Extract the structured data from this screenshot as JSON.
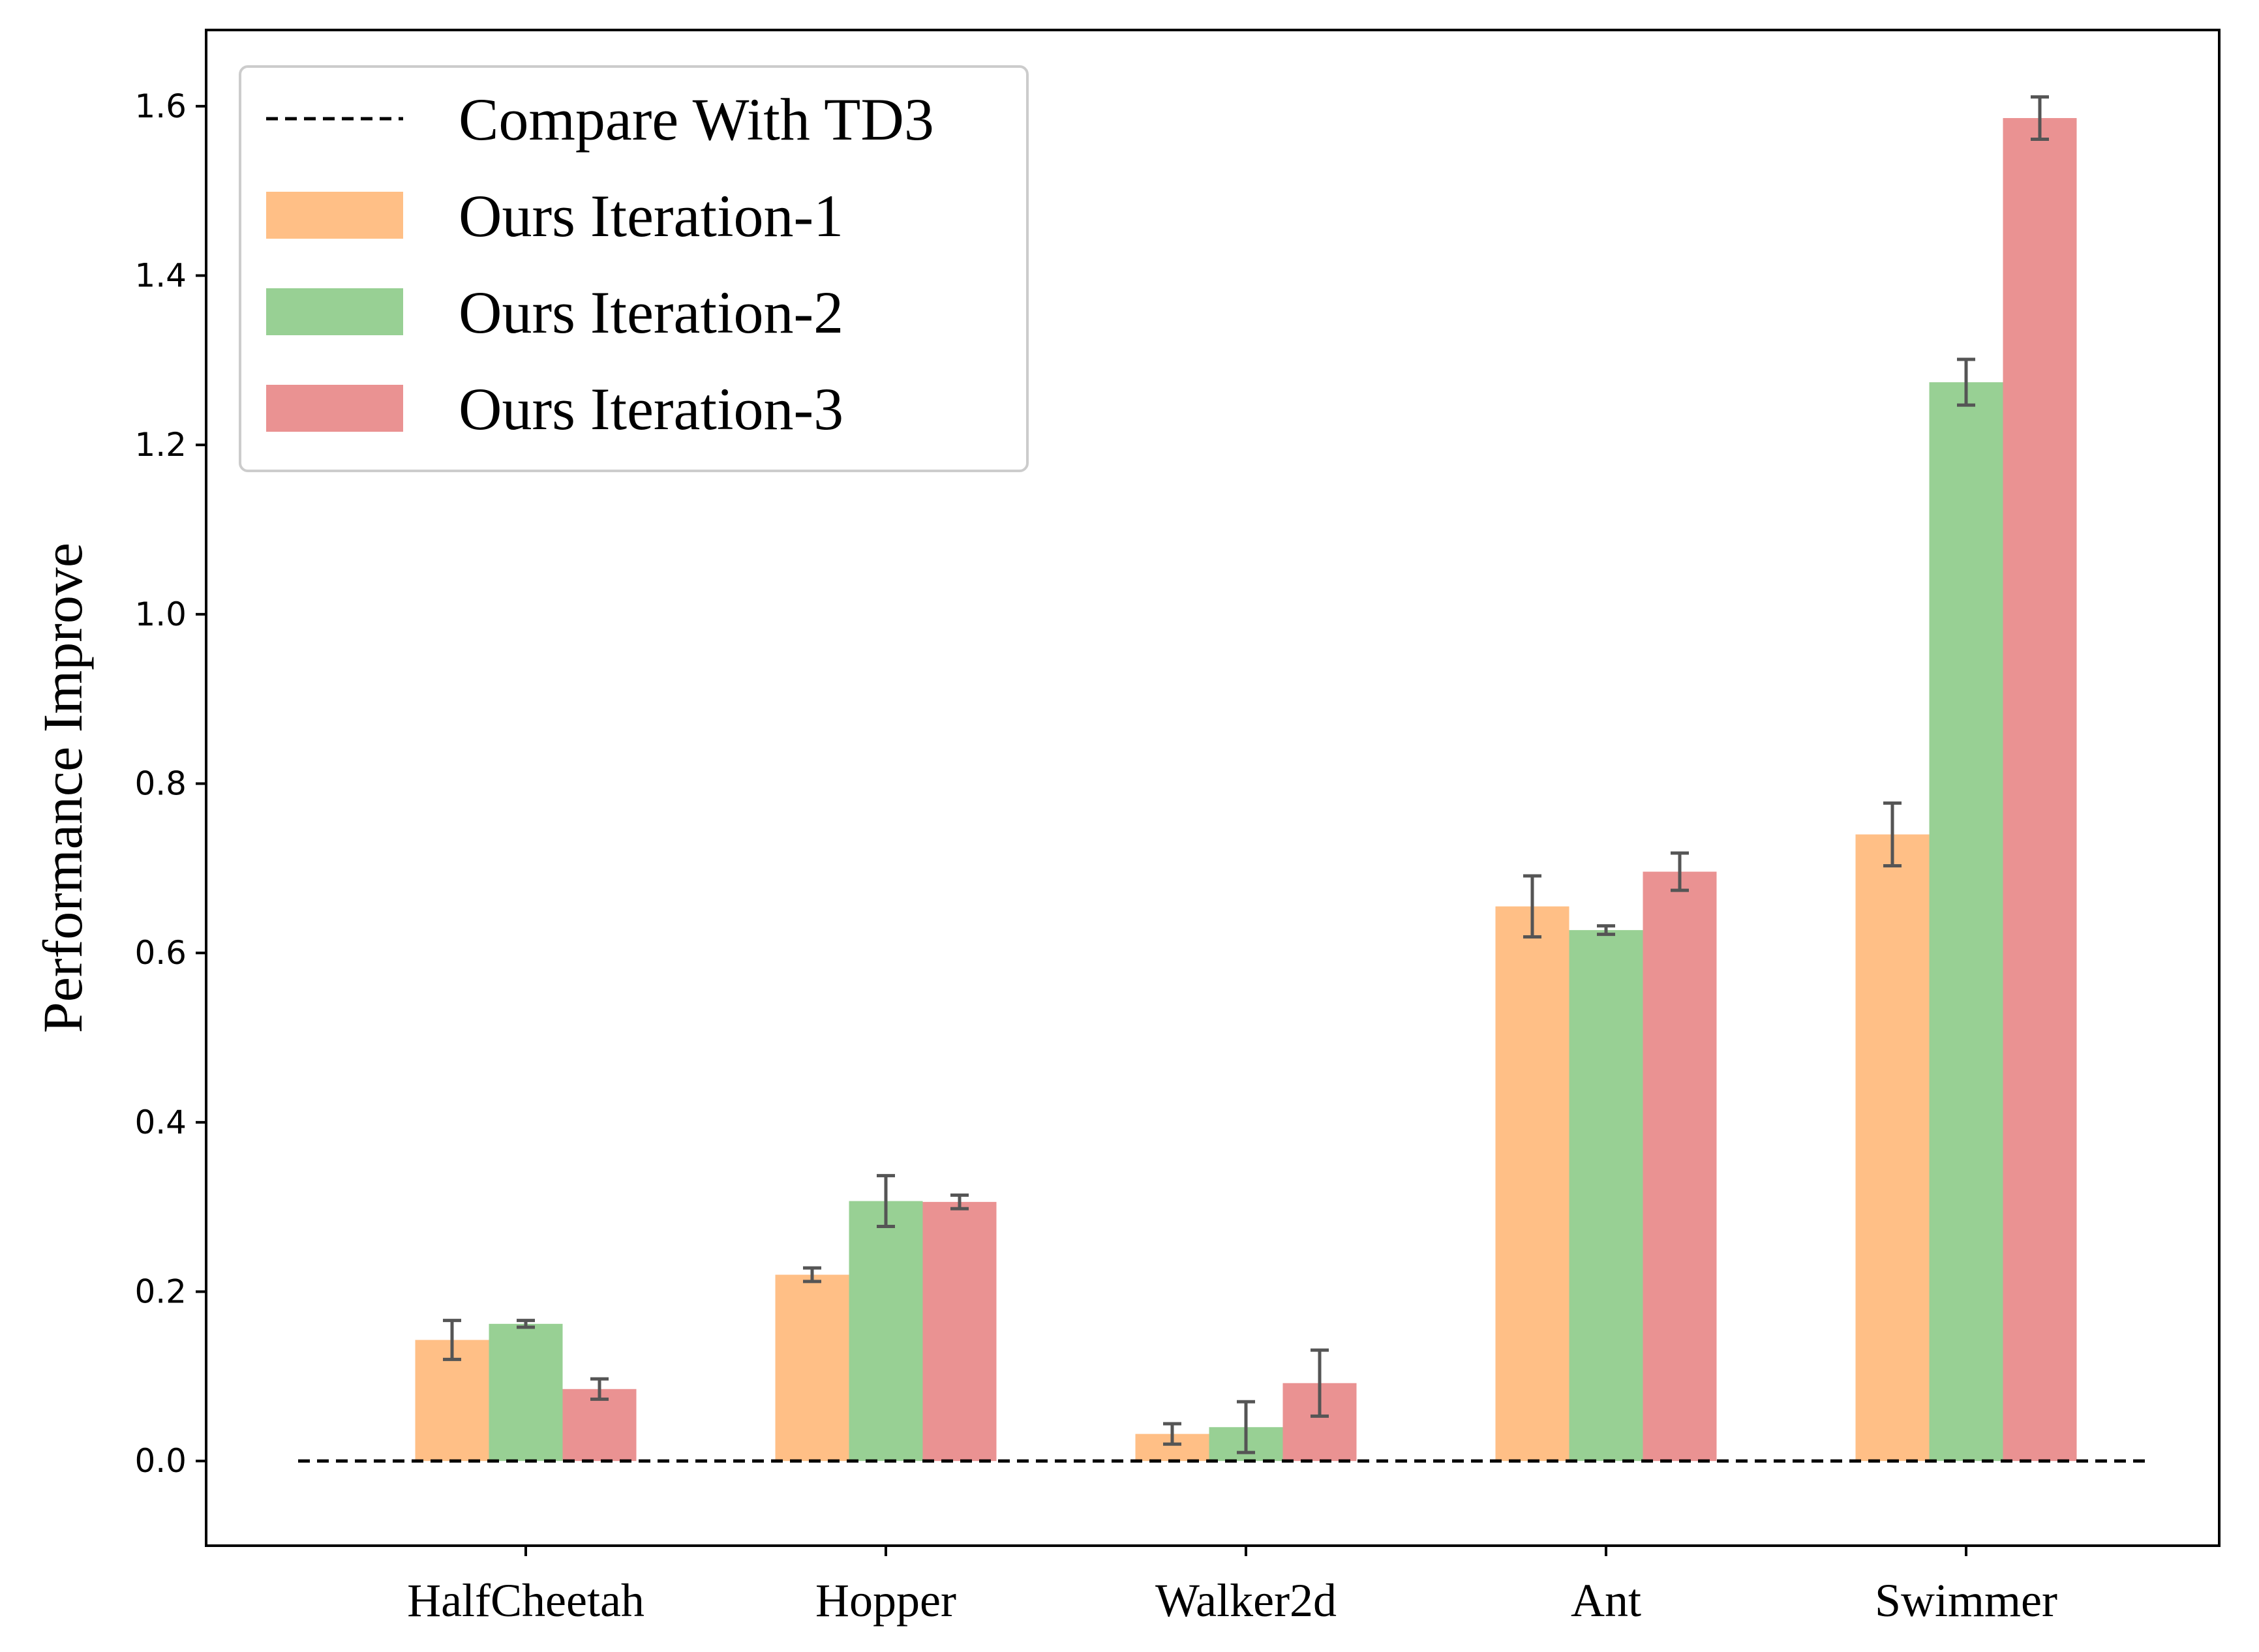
{
  "chart_data": {
    "type": "bar",
    "title": "",
    "xlabel": "",
    "ylabel": "Performance Improve",
    "ylim": [
      -0.1,
      1.69
    ],
    "yticks": [
      0.0,
      0.2,
      0.4,
      0.6,
      0.8,
      1.0,
      1.2,
      1.4,
      1.6
    ],
    "ytick_labels": [
      "0.0",
      "0.2",
      "0.4",
      "0.6",
      "0.8",
      "1.0",
      "1.2",
      "1.4",
      "1.6"
    ],
    "categories": [
      "HalfCheetah",
      "Hopper",
      "Walker2d",
      "Ant",
      "Swimmer"
    ],
    "series": [
      {
        "name": "Ours Iteration-1",
        "color": "#FFBF86",
        "values": [
          0.143,
          0.22,
          0.032,
          0.655,
          0.74
        ],
        "errors": [
          0.023,
          0.008,
          0.012,
          0.036,
          0.037
        ]
      },
      {
        "name": "Ours Iteration-2",
        "color": "#98D094",
        "values": [
          0.162,
          0.307,
          0.04,
          0.627,
          1.274
        ],
        "errors": [
          0.004,
          0.03,
          0.03,
          0.005,
          0.027
        ]
      },
      {
        "name": "Ours Iteration-3",
        "color": "#EA9292",
        "values": [
          0.085,
          0.306,
          0.092,
          0.696,
          1.586
        ],
        "errors": [
          0.012,
          0.008,
          0.039,
          0.022,
          0.025
        ]
      }
    ],
    "reference_line": {
      "name": "Compare With TD3",
      "value": 0.0,
      "style": "dashed",
      "color": "#000000"
    },
    "error_bar_color": "#555555",
    "grid": false,
    "legend_position": "top-left"
  }
}
